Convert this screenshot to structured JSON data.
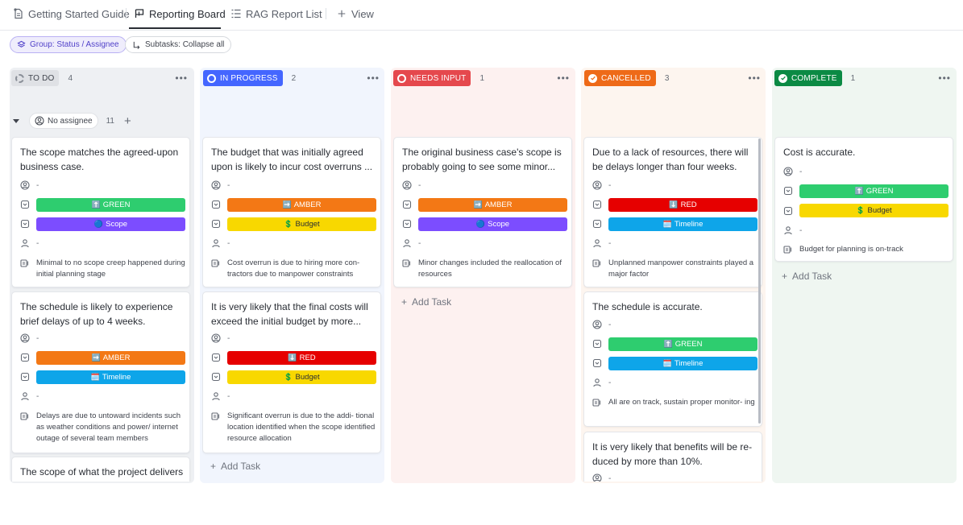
{
  "tabs": [
    {
      "label": "Getting Started Guide",
      "icon": "doc-icon"
    },
    {
      "label": "Reporting Board",
      "icon": "board-icon"
    },
    {
      "label": "RAG Report List",
      "icon": "list-icon"
    },
    {
      "label": "View",
      "icon": "plus-icon"
    }
  ],
  "chips": {
    "group": "Group: Status / Assignee",
    "subtasks": "Subtasks: Collapse all"
  },
  "colors": {
    "todo_bg": "#eef0f3",
    "inprogress_bg": "#f1f5fd",
    "needsinput_bg": "#fdf1f0",
    "cancelled_bg": "#fdf5ef",
    "complete_bg": "#eff6f1",
    "green": "#2ecd6f",
    "amber": "#f37815",
    "red": "#e60000",
    "yellow": "#f8d800",
    "purple": "#7c4dff",
    "blue": "#0ea5e9"
  },
  "columns": [
    {
      "label": "TO DO",
      "count": "4"
    },
    {
      "label": "IN PROGRESS",
      "count": "2"
    },
    {
      "label": "NEEDS INPUT",
      "count": "1"
    },
    {
      "label": "CANCELLED",
      "count": "3"
    },
    {
      "label": "COMPLETE",
      "count": "1"
    }
  ],
  "lane": {
    "assignee": "No assignee",
    "count": "11"
  },
  "placeholder": "-",
  "add_task": "Add Task",
  "tags": {
    "green": "GREEN",
    "amber": "AMBER",
    "red": "RED",
    "scope": "Scope",
    "budget": "Budget",
    "timeline": "Timeline"
  },
  "cards": {
    "todo": [
      {
        "title": "The scope matches the agreed-upon business case.",
        "note": "Minimal to no scope creep happened during initial planning stage"
      },
      {
        "title": "The schedule is likely to experience brief delays of up to 4 weeks.",
        "note": "Delays are due to untoward incidents such as weather conditions and power/ internet outage of several team members"
      },
      {
        "title": "The scope of what the project delivers will change significantly."
      }
    ],
    "inprogress": [
      {
        "title": "The budget that was initially agreed upon is likely to incur cost overruns ...",
        "note": "Cost overrun is due to hiring more con- tractors due to manpower constraints"
      },
      {
        "title": "It is very likely that the final costs will exceed the initial budget by more...",
        "note": "Significant overrun is due to the addi- tional location identified when the scope identified resource allocation"
      }
    ],
    "needsinput": [
      {
        "title": "The original business case's scope is probably going to see some minor...",
        "note": "Minor changes included the reallocation of resources"
      }
    ],
    "cancelled": [
      {
        "title": "Due to a lack of resources, there will be delays longer than four weeks.",
        "note": "Unplanned manpower constraints played a major factor"
      },
      {
        "title": "The schedule is accurate.",
        "note": "All are on track, sustain proper monitor- ing"
      },
      {
        "title": "It is very likely that benefits will be re- duced by more than 10%."
      }
    ],
    "complete": [
      {
        "title": "Cost is accurate.",
        "note": "Budget for planning is on-track"
      }
    ]
  }
}
